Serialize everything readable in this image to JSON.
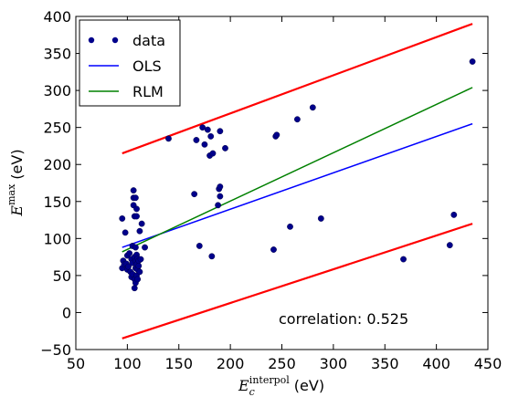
{
  "chart_data": {
    "type": "scatter",
    "xlim": [
      50,
      450
    ],
    "ylim": [
      -50,
      400
    ],
    "x_ticks": [
      "50",
      "100",
      "150",
      "200",
      "250",
      "300",
      "350",
      "400",
      "450"
    ],
    "y_ticks": [
      "−50",
      "0",
      "50",
      "100",
      "150",
      "200",
      "250",
      "300",
      "350",
      "400"
    ],
    "xlabel": {
      "symbol": "E",
      "subscript": "c",
      "superscript": "interpol",
      "unit": "(eV)"
    },
    "ylabel": {
      "symbol": "E",
      "superscript": "max",
      "unit": "(eV)"
    },
    "legend": {
      "placement": "top-left",
      "entries": [
        {
          "label": "data",
          "color": "#00008b",
          "kind": "marker"
        },
        {
          "label": "OLS",
          "color": "#0000ff",
          "kind": "line"
        },
        {
          "label": "RLM",
          "color": "#008000",
          "kind": "line"
        }
      ]
    },
    "annotation": "correlation: 0.525",
    "data_color": "#00008b",
    "ols_color": "#0000ff",
    "rlm_color": "#008000",
    "bound_color": "#ff0000",
    "points": [
      [
        95,
        127
      ],
      [
        95,
        60
      ],
      [
        96,
        70
      ],
      [
        97,
        65
      ],
      [
        98,
        108
      ],
      [
        99,
        66
      ],
      [
        100,
        77
      ],
      [
        100,
        58
      ],
      [
        101,
        62
      ],
      [
        102,
        80
      ],
      [
        103,
        55
      ],
      [
        104,
        48
      ],
      [
        104,
        72
      ],
      [
        105,
        67
      ],
      [
        105,
        90
      ],
      [
        105,
        52
      ],
      [
        106,
        155
      ],
      [
        106,
        165
      ],
      [
        106,
        145
      ],
      [
        107,
        130
      ],
      [
        107,
        75
      ],
      [
        107,
        45
      ],
      [
        107,
        33
      ],
      [
        108,
        155
      ],
      [
        108,
        88
      ],
      [
        108,
        70
      ],
      [
        108,
        60
      ],
      [
        108,
        40
      ],
      [
        109,
        140
      ],
      [
        109,
        130
      ],
      [
        109,
        78
      ],
      [
        109,
        65
      ],
      [
        109,
        50
      ],
      [
        110,
        73
      ],
      [
        110,
        58
      ],
      [
        110,
        45
      ],
      [
        111,
        70
      ],
      [
        111,
        63
      ],
      [
        112,
        55
      ],
      [
        112,
        110
      ],
      [
        113,
        72
      ],
      [
        114,
        120
      ],
      [
        117,
        88
      ],
      [
        140,
        235
      ],
      [
        165,
        160
      ],
      [
        167,
        233
      ],
      [
        170,
        90
      ],
      [
        173,
        250
      ],
      [
        175,
        227
      ],
      [
        178,
        247
      ],
      [
        180,
        212
      ],
      [
        181,
        238
      ],
      [
        182,
        76
      ],
      [
        183,
        215
      ],
      [
        188,
        145
      ],
      [
        189,
        167
      ],
      [
        190,
        170
      ],
      [
        190,
        157
      ],
      [
        190,
        245
      ],
      [
        195,
        222
      ],
      [
        242,
        85
      ],
      [
        244,
        238
      ],
      [
        245,
        240
      ],
      [
        258,
        116
      ],
      [
        265,
        261
      ],
      [
        280,
        277
      ],
      [
        288,
        127
      ],
      [
        368,
        72
      ],
      [
        413,
        91
      ],
      [
        417,
        132
      ],
      [
        435,
        339
      ]
    ],
    "ols": [
      [
        95,
        88
      ],
      [
        435,
        255
      ]
    ],
    "rlm": [
      [
        95,
        82
      ],
      [
        435,
        304
      ]
    ],
    "upper_bound": [
      [
        95,
        215
      ],
      [
        435,
        390
      ]
    ],
    "lower_bound": [
      [
        95,
        -35
      ],
      [
        435,
        120
      ]
    ]
  }
}
